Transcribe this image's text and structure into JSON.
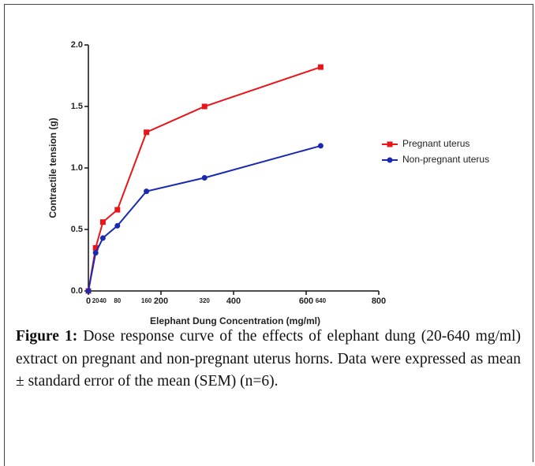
{
  "chart_data": {
    "type": "line",
    "x_label": "Elephant Dung Concentration (mg/ml)",
    "y_label": "Contractile tension  (g)",
    "x": [
      0,
      20,
      40,
      80,
      160,
      320,
      640
    ],
    "series": [
      {
        "name": "Pregnant uterus",
        "color": "#e8161b",
        "marker": "square",
        "values": [
          0,
          0.35,
          0.56,
          0.66,
          1.29,
          1.5,
          1.82
        ]
      },
      {
        "name": "Non-pregnant uterus",
        "color": "#1a2ab0",
        "marker": "circle",
        "values": [
          0,
          0.31,
          0.43,
          0.53,
          0.81,
          0.92,
          1.18
        ]
      }
    ],
    "xlim": [
      0,
      800
    ],
    "xticks": [
      0,
      200,
      400,
      600,
      800
    ],
    "x_dose_ticks": [
      20,
      40,
      80,
      160,
      320,
      640
    ],
    "ylim": [
      0,
      2
    ],
    "yticks": [
      {
        "value": 0,
        "label": "0.0"
      },
      0.5,
      {
        "value": 1,
        "label": "1.0"
      },
      1.5,
      {
        "value": 2,
        "label": "2.0"
      }
    ],
    "legend": "right",
    "caption_label": "Figure 1:",
    "caption": "Dose response curve of the effects of elephant dung (20-640 mg/ml) extract on pregnant and non-pregnant uterus horns. Data were expressed as mean ± standard error of the mean (SEM) (n=6)."
  }
}
